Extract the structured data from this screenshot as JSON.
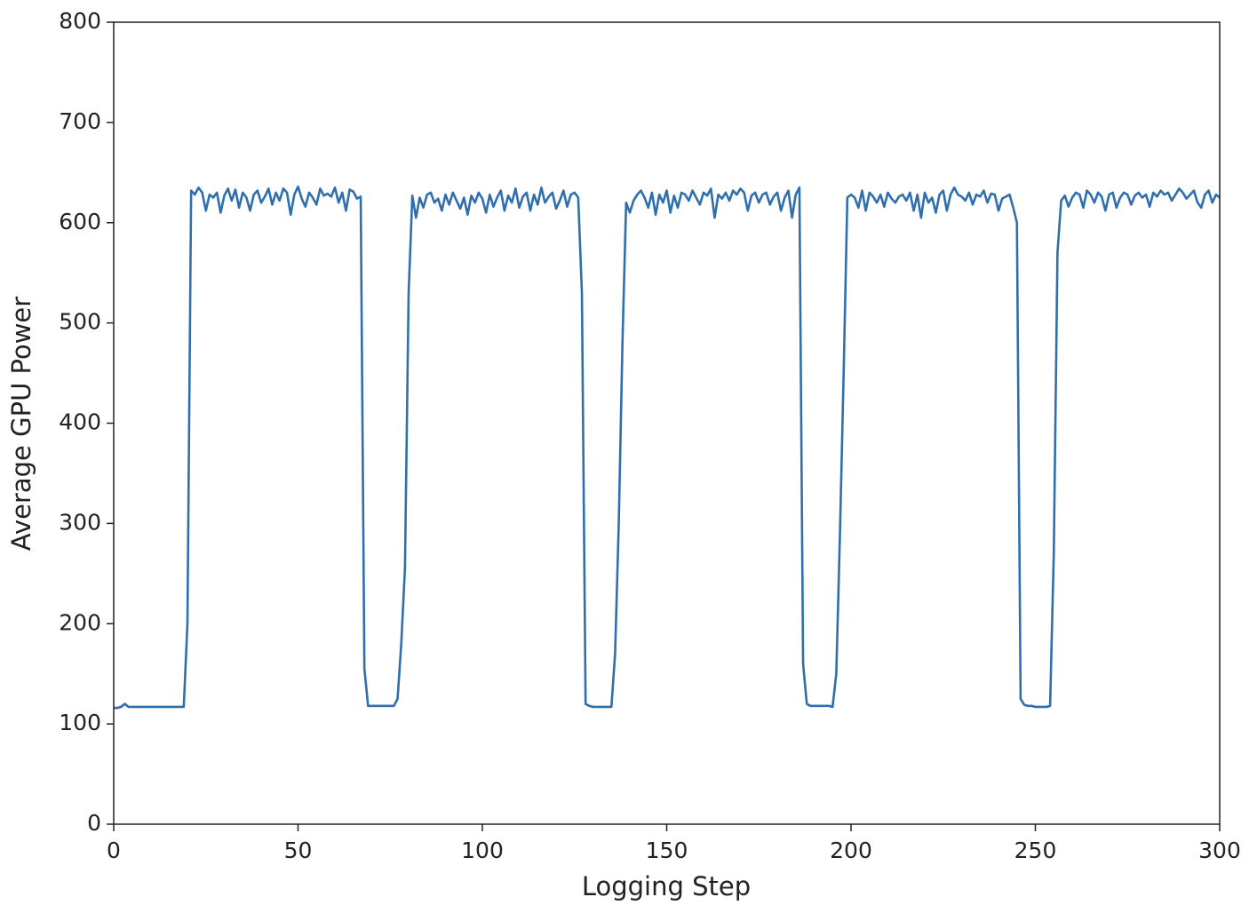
{
  "chart_data": {
    "type": "line",
    "xlabel": "Logging Step",
    "ylabel": "Average GPU Power",
    "color": "#2f6fad",
    "xlim": [
      0,
      300
    ],
    "xticks": [
      0,
      50,
      100,
      150,
      200,
      250,
      300
    ],
    "ylim": [
      0,
      800
    ],
    "yticks": [
      0,
      100,
      200,
      300,
      400,
      500,
      600,
      700,
      800
    ],
    "x": [
      0,
      1,
      2,
      3,
      4,
      5,
      6,
      7,
      8,
      9,
      10,
      11,
      12,
      13,
      14,
      15,
      16,
      17,
      18,
      19,
      20,
      21,
      22,
      23,
      24,
      25,
      26,
      27,
      28,
      29,
      30,
      31,
      32,
      33,
      34,
      35,
      36,
      37,
      38,
      39,
      40,
      41,
      42,
      43,
      44,
      45,
      46,
      47,
      48,
      49,
      50,
      51,
      52,
      53,
      54,
      55,
      56,
      57,
      58,
      59,
      60,
      61,
      62,
      63,
      64,
      65,
      66,
      67,
      68,
      69,
      70,
      71,
      72,
      73,
      74,
      75,
      76,
      77,
      78,
      79,
      80,
      81,
      82,
      83,
      84,
      85,
      86,
      87,
      88,
      89,
      90,
      91,
      92,
      93,
      94,
      95,
      96,
      97,
      98,
      99,
      100,
      101,
      102,
      103,
      104,
      105,
      106,
      107,
      108,
      109,
      110,
      111,
      112,
      113,
      114,
      115,
      116,
      117,
      118,
      119,
      120,
      121,
      122,
      123,
      124,
      125,
      126,
      127,
      128,
      129,
      130,
      131,
      132,
      133,
      134,
      135,
      136,
      137,
      138,
      139,
      140,
      141,
      142,
      143,
      144,
      145,
      146,
      147,
      148,
      149,
      150,
      151,
      152,
      153,
      154,
      155,
      156,
      157,
      158,
      159,
      160,
      161,
      162,
      163,
      164,
      165,
      166,
      167,
      168,
      169,
      170,
      171,
      172,
      173,
      174,
      175,
      176,
      177,
      178,
      179,
      180,
      181,
      182,
      183,
      184,
      185,
      186,
      187,
      188,
      189,
      190,
      191,
      192,
      193,
      194,
      195,
      196,
      197,
      198,
      199,
      200,
      201,
      202,
      203,
      204,
      205,
      206,
      207,
      208,
      209,
      210,
      211,
      212,
      213,
      214,
      215,
      216,
      217,
      218,
      219,
      220,
      221,
      222,
      223,
      224,
      225,
      226,
      227,
      228,
      229,
      230,
      231,
      232,
      233,
      234,
      235,
      236,
      237,
      238,
      239,
      240,
      241,
      242,
      243,
      244,
      245,
      246,
      247,
      248,
      249,
      250,
      251,
      252,
      253,
      254,
      255,
      256,
      257,
      258,
      259,
      260,
      261,
      262,
      263,
      264,
      265,
      266,
      267,
      268,
      269,
      270,
      271,
      272,
      273,
      274,
      275,
      276,
      277,
      278,
      279,
      280,
      281,
      282,
      283,
      284,
      285,
      286,
      287,
      288,
      289,
      290,
      291,
      292,
      293,
      294,
      295,
      296,
      297,
      298,
      299,
      300
    ],
    "values": [
      116,
      116,
      117,
      120,
      117,
      117,
      117,
      117,
      117,
      117,
      117,
      117,
      117,
      117,
      117,
      117,
      117,
      117,
      117,
      117,
      200,
      632,
      628,
      635,
      630,
      612,
      628,
      625,
      630,
      610,
      627,
      634,
      622,
      633,
      615,
      630,
      625,
      612,
      628,
      632,
      620,
      626,
      634,
      618,
      630,
      622,
      634,
      630,
      608,
      628,
      636,
      624,
      616,
      630,
      625,
      618,
      634,
      627,
      629,
      626,
      635,
      620,
      630,
      612,
      633,
      631,
      624,
      626,
      155,
      118,
      118,
      118,
      118,
      118,
      118,
      118,
      118,
      125,
      180,
      255,
      530,
      627,
      605,
      625,
      615,
      628,
      630,
      620,
      624,
      612,
      628,
      618,
      630,
      622,
      614,
      625,
      608,
      627,
      620,
      630,
      624,
      610,
      628,
      616,
      625,
      632,
      612,
      627,
      620,
      634,
      615,
      626,
      630,
      612,
      628,
      618,
      635,
      620,
      626,
      630,
      614,
      622,
      632,
      616,
      628,
      630,
      625,
      530,
      120,
      118,
      117,
      117,
      117,
      117,
      117,
      117,
      170,
      300,
      480,
      620,
      610,
      622,
      628,
      632,
      625,
      615,
      630,
      608,
      628,
      620,
      632,
      610,
      627,
      615,
      630,
      628,
      622,
      632,
      625,
      618,
      630,
      627,
      634,
      605,
      628,
      624,
      630,
      622,
      632,
      628,
      634,
      630,
      612,
      627,
      630,
      620,
      628,
      630,
      618,
      626,
      630,
      612,
      625,
      632,
      605,
      628,
      635,
      160,
      120,
      118,
      118,
      118,
      118,
      118,
      118,
      117,
      150,
      290,
      450,
      625,
      628,
      625,
      615,
      632,
      612,
      630,
      626,
      620,
      628,
      616,
      630,
      624,
      620,
      626,
      628,
      622,
      630,
      612,
      628,
      605,
      630,
      620,
      625,
      610,
      628,
      632,
      612,
      628,
      635,
      628,
      626,
      622,
      630,
      618,
      628,
      626,
      632,
      620,
      629,
      628,
      612,
      624,
      626,
      628,
      615,
      600,
      125,
      119,
      118,
      118,
      117,
      117,
      117,
      117,
      118,
      270,
      570,
      622,
      627,
      616,
      625,
      630,
      628,
      615,
      632,
      628,
      620,
      630,
      626,
      612,
      628,
      630,
      615,
      625,
      630,
      628,
      618,
      627,
      630,
      625,
      628,
      616,
      630,
      626,
      632,
      628,
      630,
      622,
      628,
      634,
      630,
      624,
      628,
      632,
      620,
      615,
      628,
      632,
      620,
      628,
      625
    ]
  }
}
